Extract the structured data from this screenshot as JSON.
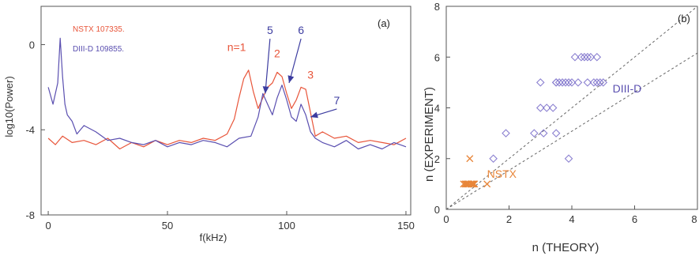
{
  "chart_data": [
    {
      "type": "line",
      "panel_label": "(a)",
      "xlabel": "f(kHz)",
      "ylabel": "log10(Power)",
      "xlim": [
        -3,
        152
      ],
      "ylim": [
        -8,
        1.8
      ],
      "x_ticks": [
        0,
        50,
        100,
        150
      ],
      "y_ticks": [
        0,
        -4,
        -8
      ],
      "legend": [
        "NSTX 107335.",
        "DIII-D 109855."
      ],
      "colors": {
        "nstx": "#e8553a",
        "diiid": "#5a4fb0"
      },
      "series": [
        {
          "name": "NSTX 107335.",
          "x": [
            0,
            3,
            6,
            10,
            15,
            20,
            25,
            30,
            35,
            40,
            45,
            50,
            55,
            60,
            65,
            70,
            75,
            78,
            80,
            82,
            84,
            86,
            88,
            90,
            92,
            94,
            96,
            98,
            100,
            102,
            104,
            106,
            108,
            110,
            112,
            115,
            120,
            125,
            130,
            135,
            140,
            145,
            150
          ],
          "values": [
            -4.4,
            -4.7,
            -4.3,
            -4.6,
            -4.5,
            -4.7,
            -4.4,
            -4.9,
            -4.6,
            -4.8,
            -4.5,
            -4.7,
            -4.5,
            -4.6,
            -4.4,
            -4.5,
            -4.2,
            -3.5,
            -2.5,
            -1.6,
            -1.2,
            -2.2,
            -3.0,
            -2.5,
            -2.0,
            -1.8,
            -1.3,
            -1.5,
            -2.3,
            -3.0,
            -2.6,
            -2.0,
            -2.1,
            -3.2,
            -4.3,
            -4.1,
            -4.4,
            -4.3,
            -4.6,
            -4.5,
            -4.6,
            -4.7,
            -4.4
          ]
        },
        {
          "name": "DIII-D 109855.",
          "x": [
            0,
            2,
            4,
            5,
            6,
            7,
            8,
            10,
            12,
            15,
            20,
            25,
            30,
            35,
            40,
            45,
            50,
            55,
            60,
            65,
            70,
            75,
            80,
            85,
            88,
            90,
            92,
            94,
            96,
            98,
            100,
            102,
            104,
            106,
            108,
            110,
            112,
            115,
            120,
            125,
            130,
            135,
            140,
            145,
            150
          ],
          "values": [
            -2.0,
            -2.8,
            -1.8,
            0.3,
            -1.5,
            -2.8,
            -3.3,
            -3.6,
            -4.2,
            -3.8,
            -4.1,
            -4.5,
            -4.4,
            -4.6,
            -4.7,
            -4.5,
            -4.8,
            -4.6,
            -4.7,
            -4.5,
            -4.6,
            -4.8,
            -4.4,
            -4.3,
            -3.4,
            -2.3,
            -2.8,
            -3.3,
            -2.5,
            -1.9,
            -2.6,
            -3.4,
            -3.6,
            -2.8,
            -3.3,
            -4.1,
            -4.4,
            -4.6,
            -4.8,
            -4.5,
            -4.9,
            -4.7,
            -4.9,
            -4.6,
            -4.8
          ]
        }
      ],
      "annotations": [
        {
          "text": "n=1",
          "x": 79,
          "y": -0.3,
          "color": "#e8553a"
        },
        {
          "text": "2",
          "x": 96,
          "y": -0.6,
          "color": "#e8553a"
        },
        {
          "text": "3",
          "x": 110,
          "y": -1.6,
          "color": "#e8553a"
        },
        {
          "text": "5",
          "x": 93,
          "y": 0.5,
          "color": "#3c3ca0",
          "arrow_to": [
            91,
            -2.3
          ]
        },
        {
          "text": "6",
          "x": 106,
          "y": 0.5,
          "color": "#3c3ca0",
          "arrow_to": [
            101,
            -1.8
          ]
        },
        {
          "text": "7",
          "x": 121,
          "y": -2.8,
          "color": "#3c3ca0",
          "arrow_to": [
            110,
            -3.4
          ]
        }
      ]
    },
    {
      "type": "scatter",
      "panel_label": "(b)",
      "xlabel": "n (THEORY)",
      "ylabel": "n (EXPERIMENT)",
      "xlim": [
        0,
        8
      ],
      "ylim": [
        0,
        8
      ],
      "x_ticks": [
        0,
        2,
        4,
        6,
        8
      ],
      "y_ticks": [
        0,
        2,
        4,
        6,
        8
      ],
      "series": [
        {
          "name": "NSTX",
          "marker": "x",
          "color": "#e8863a",
          "x": [
            0.55,
            0.62,
            0.68,
            0.72,
            0.78,
            0.82,
            0.88,
            0.6,
            0.7,
            0.8,
            0.9,
            0.65,
            0.85,
            0.75,
            1.3
          ],
          "y": [
            1,
            1,
            1,
            1,
            1,
            1,
            1,
            1,
            1,
            1,
            1,
            1,
            1,
            2,
            1
          ]
        },
        {
          "name": "DIII-D",
          "marker": "diamond",
          "color": "#8a7fd0",
          "x": [
            1.5,
            1.9,
            2.8,
            3.0,
            3.2,
            3.0,
            3.4,
            3.5,
            3.9,
            3.5,
            3.6,
            3.7,
            3.8,
            4.0,
            4.2,
            4.5,
            4.7,
            4.8,
            4.9,
            5.0,
            4.1,
            4.3,
            4.4,
            4.5,
            4.6,
            4.8,
            3.1,
            3.5,
            3.9
          ],
          "y": [
            2,
            3,
            3,
            4,
            4,
            5,
            4,
            3,
            2,
            5,
            5,
            5,
            5,
            5,
            5,
            5,
            5,
            5,
            5,
            5,
            6,
            6,
            6,
            6,
            6,
            6,
            3,
            5,
            5
          ]
        }
      ],
      "reference_lines": [
        {
          "slope": 1.0
        },
        {
          "slope": 0.77
        }
      ],
      "annotations": [
        {
          "text": "NSTX",
          "x": 1.3,
          "y": 1.25,
          "color": "#e8863a"
        },
        {
          "text": "DIII-D",
          "x": 5.3,
          "y": 4.6,
          "color": "#5a4fb0"
        }
      ]
    }
  ]
}
